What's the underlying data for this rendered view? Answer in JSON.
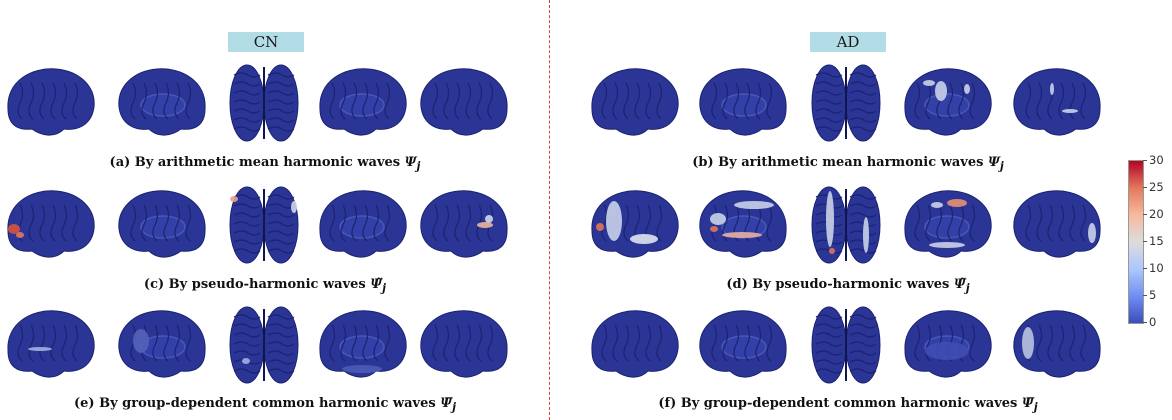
{
  "groups": {
    "left": "CN",
    "right": "AD"
  },
  "captions": {
    "a": {
      "text": "(a) By arithmetic mean harmonic waves ",
      "symbol": "Ψ",
      "sub": "j"
    },
    "b": {
      "text": "(b) By arithmetic mean harmonic waves ",
      "symbol": "Ψ",
      "sub": "j"
    },
    "c": {
      "text": "(c) By pseudo-harmonic waves ",
      "symbol": "Ψ̃",
      "sub": "j"
    },
    "d": {
      "text": "(d) By pseudo-harmonic waves ",
      "symbol": "Ψ̃",
      "sub": "j"
    },
    "e": {
      "text": "(e) By group-dependent common harmonic waves ",
      "symbol": "Ψ̅",
      "sub": "j"
    },
    "f": {
      "text": "(f) By group-dependent common harmonic waves ",
      "symbol": "Ψ̅",
      "sub": "j"
    }
  },
  "colorbar": {
    "ticks": [
      "0",
      "5",
      "10",
      "15",
      "20",
      "25",
      "30"
    ],
    "range": [
      0,
      30
    ],
    "colors": [
      "#3a4cc0",
      "#b40426"
    ]
  },
  "colors": {
    "brain": "#2a3596",
    "brainDark": "#1b2370",
    "divider": "#e04040",
    "label_bg": "#b3dde6"
  }
}
